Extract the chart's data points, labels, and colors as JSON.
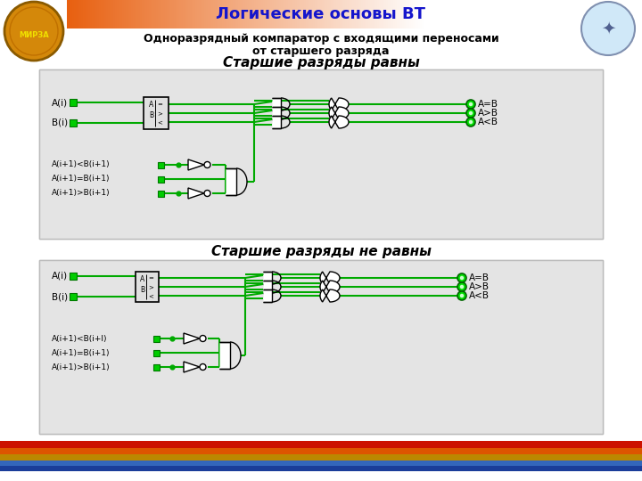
{
  "title": "Логические основы ВТ",
  "subtitle1": "Одноразрядный компаратор с входящими переносами",
  "subtitle2": "от старшего разряда",
  "section1": "Старшие разряды равны",
  "section2": "Старшие разряды не равны",
  "bg_color": "#f0f0f0",
  "orange_color": "#e87030",
  "title_color": "#1515cc",
  "line_color": "#00aa00",
  "gate_fill": "#ffffff",
  "comp_fill": "#e0e0e0",
  "green_sq": "#00cc00",
  "green_sq_ec": "#007700",
  "green_dot_fc": "#00dd00",
  "green_dot_ec": "#006600",
  "section_bg": "#e4e4e4",
  "section_ec": "#bbbbbb",
  "footer_bars": [
    "#cc2000",
    "#dd5500",
    "#cc8800",
    "#3366bb",
    "#1a3d99"
  ]
}
